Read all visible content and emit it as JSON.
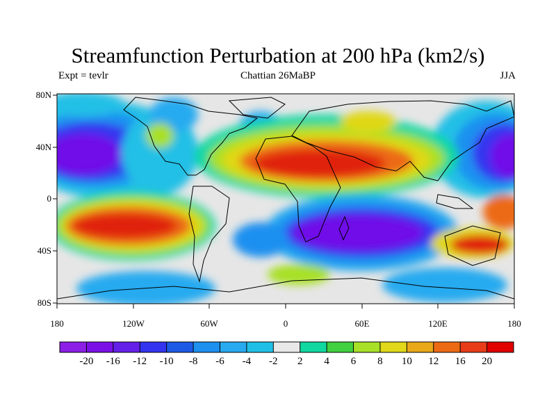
{
  "title": "Streamfunction Perturbation at 200 hPa (km2/s)",
  "subtitle": {
    "left": "Expt = tevlr",
    "center": "Chattian  26MaBP",
    "right": "JJA"
  },
  "lat_ticks": [
    "80N",
    "40N",
    "0",
    "40S",
    "80S"
  ],
  "lon_ticks": [
    "180",
    "120W",
    "60W",
    "0",
    "60E",
    "120E",
    "180"
  ],
  "colorbar": {
    "colors": [
      "#8c1ee6",
      "#7a10e6",
      "#6420e8",
      "#3434f0",
      "#1c5ae6",
      "#1e90f0",
      "#28aaf0",
      "#20c0e6",
      "#e8e8e8",
      "#10d8a0",
      "#40d040",
      "#a8e028",
      "#e0d818",
      "#e8a818",
      "#ec6a14",
      "#e83c18",
      "#e00000"
    ],
    "labels": [
      "-20",
      "-16",
      "-12",
      "-10",
      "-8",
      "-6",
      "-4",
      "-2",
      "2",
      "4",
      "6",
      "8",
      "10",
      "12",
      "16",
      "20"
    ]
  },
  "legend_colors": {
    "neg_strong": "#7010e8",
    "pos_strong": "#e02010",
    "neutral": "#e6e6e6",
    "coast": "#000000"
  }
}
